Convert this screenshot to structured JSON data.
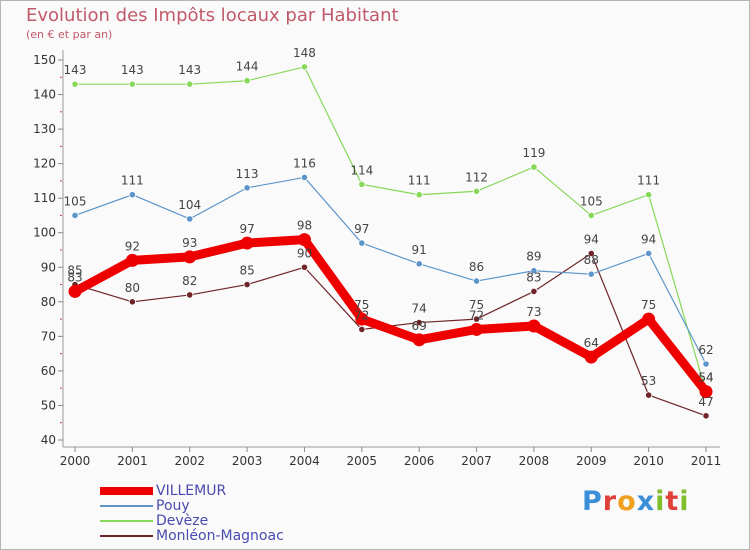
{
  "header": {
    "title": "Evolution des Impôts locaux par Habitant",
    "subtitle": "(en € et par an)"
  },
  "brand": {
    "text": "Proxiti",
    "colors": [
      "#3a8fd8",
      "#e0403a",
      "#f0a020",
      "#3a8fd8",
      "#7fbf2a",
      "#e0403a",
      "#7fbf2a"
    ]
  },
  "chart_data": {
    "type": "line",
    "x": [
      "2000",
      "2001",
      "2002",
      "2003",
      "2004",
      "2005",
      "2006",
      "2007",
      "2008",
      "2009",
      "2010",
      "2011"
    ],
    "ylim": [
      40,
      150
    ],
    "yticks": [
      40,
      50,
      60,
      70,
      80,
      90,
      100,
      110,
      120,
      130,
      140,
      150
    ],
    "grid": false,
    "legend_position": "bottom-left",
    "series": [
      {
        "name": "VILLEMUR",
        "color": "#ee0000",
        "values": [
          83,
          92,
          93,
          97,
          98,
          75,
          69,
          72,
          73,
          64,
          75,
          54
        ]
      },
      {
        "name": "Pouy",
        "color": "#5e95c8",
        "values": [
          105,
          111,
          104,
          113,
          116,
          97,
          91,
          86,
          89,
          88,
          94,
          62
        ]
      },
      {
        "name": "Devèze",
        "color": "#88d85a",
        "values": [
          143,
          143,
          143,
          144,
          148,
          114,
          111,
          112,
          119,
          105,
          111,
          54
        ]
      },
      {
        "name": "Monléon-Magnoac",
        "color": "#6e2428",
        "values": [
          85,
          80,
          82,
          85,
          90,
          72,
          74,
          75,
          83,
          94,
          53,
          47
        ]
      }
    ],
    "point_labels": {
      "VILLEMUR": [
        "83",
        "92",
        "93",
        "97",
        "98",
        "75",
        "69",
        "72",
        "73",
        "64",
        "75",
        "54"
      ],
      "Pouy": [
        "105",
        "111",
        "104",
        "113",
        "116",
        "97",
        "91",
        "86",
        "89",
        "88",
        "94",
        "62"
      ],
      "Devèze": [
        "143",
        "143",
        "143",
        "144",
        "148",
        "114",
        "111",
        "112",
        "119",
        "105",
        "111",
        "54"
      ],
      "Monléon-Magnoac": [
        "85",
        "80",
        "82",
        "85",
        "90",
        "72",
        "74",
        "75",
        "83",
        "94",
        "53",
        "47"
      ]
    }
  }
}
